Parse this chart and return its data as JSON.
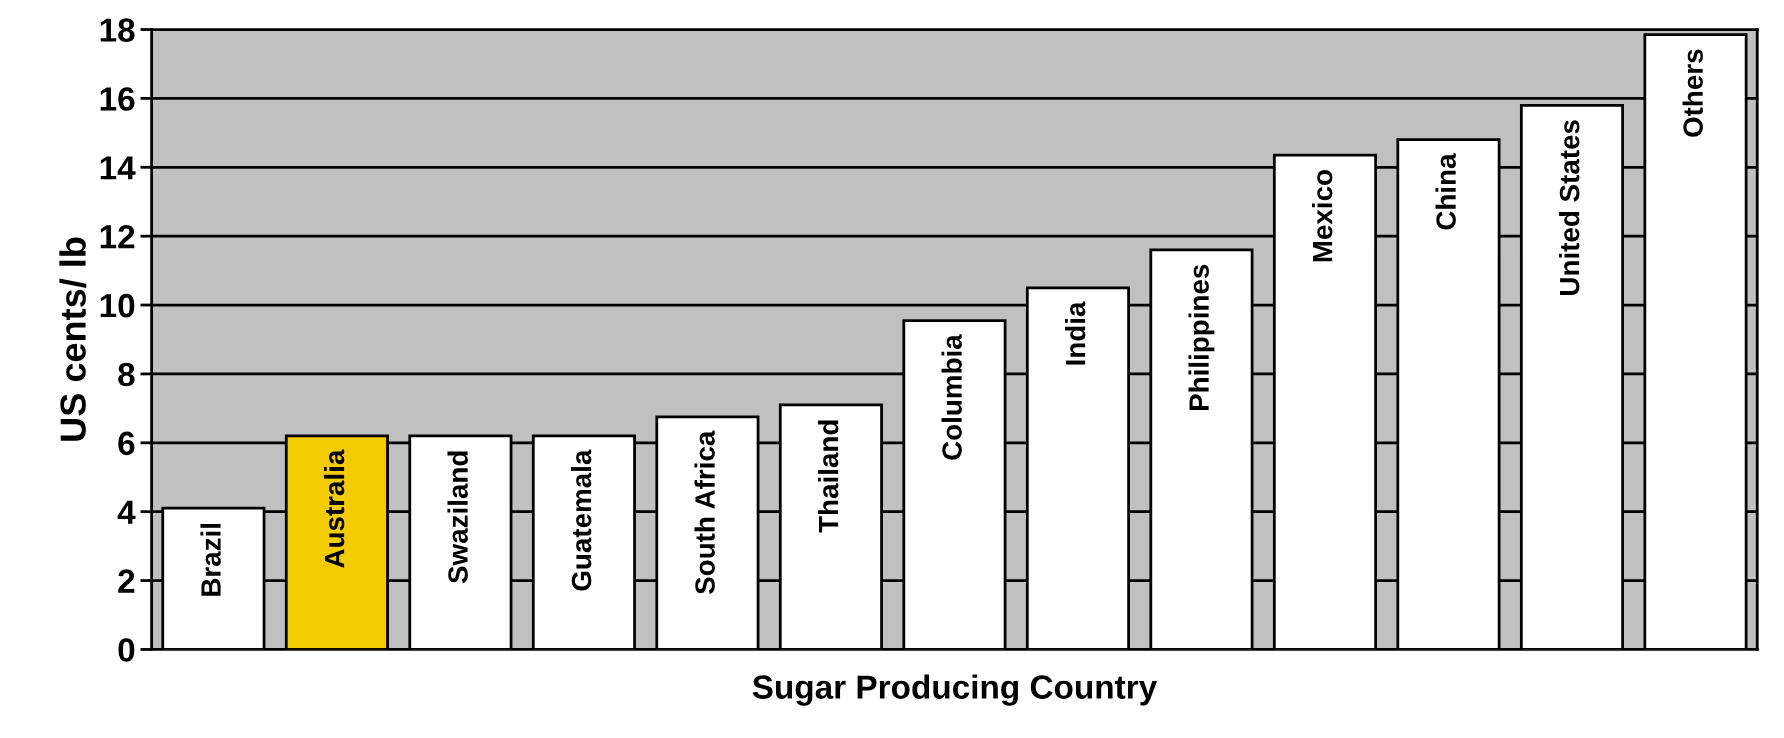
{
  "chart_data": {
    "type": "bar",
    "xlabel": "Sugar Producing Country",
    "ylabel": "US cents/ lb",
    "categories": [
      "Brazil",
      "Australia",
      "Swaziland",
      "Guatemala",
      "South Africa",
      "Thailand",
      "Columbia",
      "India",
      "Philippines",
      "Mexico",
      "China",
      "United States",
      "Others"
    ],
    "values": [
      4.1,
      6.2,
      6.2,
      6.2,
      6.75,
      7.1,
      9.55,
      10.5,
      11.6,
      14.35,
      14.8,
      15.8,
      17.85
    ],
    "colors": [
      "#ffffff",
      "#f2cc00",
      "#ffffff",
      "#ffffff",
      "#ffffff",
      "#ffffff",
      "#ffffff",
      "#ffffff",
      "#ffffff",
      "#ffffff",
      "#ffffff",
      "#ffffff",
      "#ffffff"
    ],
    "ylim": [
      0,
      18
    ],
    "yticks": [
      0,
      2,
      4,
      6,
      8,
      10,
      12,
      14,
      16,
      18
    ],
    "grid": "y",
    "legend": false
  }
}
